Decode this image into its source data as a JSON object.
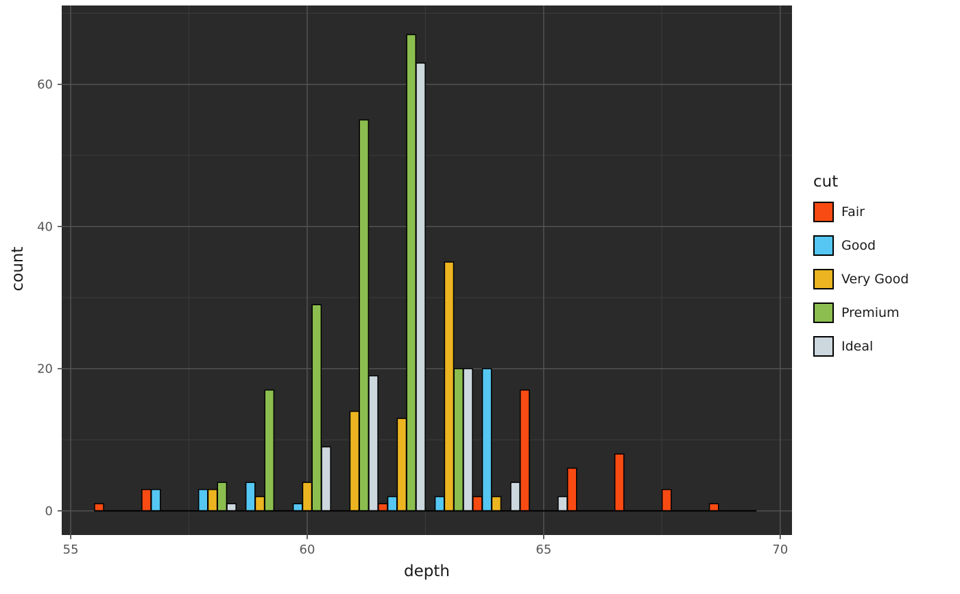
{
  "chart_data": {
    "type": "bar",
    "subtype": "dodged-histogram",
    "xlabel": "depth",
    "ylabel": "count",
    "legend_title": "cut",
    "legend_position": "right",
    "grid": true,
    "panel_background": "#2a2a2a",
    "grid_major_color": "#565656",
    "grid_minor_color": "#3d3d3d",
    "x_ticks": [
      55,
      60,
      65,
      70
    ],
    "x_minor_ticks": [
      57.5,
      62.5,
      67.5
    ],
    "y_ticks": [
      0,
      20,
      40,
      60
    ],
    "y_minor_ticks": [
      10,
      30,
      50,
      70
    ],
    "x_range": [
      54.81,
      70.25
    ],
    "y_range": [
      -3.4,
      71.1
    ],
    "bar_slot_width": 0.2,
    "bar_width": 0.19,
    "series": [
      {
        "name": "Fair",
        "color": "#F84B13"
      },
      {
        "name": "Good",
        "color": "#55C7F2"
      },
      {
        "name": "Very Good",
        "color": "#EBB420"
      },
      {
        "name": "Premium",
        "color": "#8CBE4F"
      },
      {
        "name": "Ideal",
        "color": "#CDD7DE"
      }
    ],
    "bins": [
      {
        "center": 56,
        "counts": [
          1,
          0,
          0,
          0,
          0
        ]
      },
      {
        "center": 57,
        "counts": [
          3,
          3,
          0,
          0,
          0
        ]
      },
      {
        "center": 58,
        "counts": [
          0,
          3,
          3,
          4,
          1
        ]
      },
      {
        "center": 59,
        "counts": [
          0,
          4,
          2,
          17,
          0
        ]
      },
      {
        "center": 60,
        "counts": [
          0,
          1,
          4,
          29,
          9
        ]
      },
      {
        "center": 61,
        "counts": [
          0,
          0,
          14,
          55,
          19
        ]
      },
      {
        "center": 62,
        "counts": [
          1,
          2,
          13,
          67,
          63
        ]
      },
      {
        "center": 63,
        "counts": [
          0,
          2,
          35,
          20,
          20
        ]
      },
      {
        "center": 64,
        "counts": [
          2,
          20,
          2,
          0,
          4
        ]
      },
      {
        "center": 65,
        "counts": [
          17,
          0,
          0,
          0,
          2
        ]
      },
      {
        "center": 66,
        "counts": [
          6,
          0,
          0,
          0,
          0
        ]
      },
      {
        "center": 67,
        "counts": [
          8,
          0,
          0,
          0,
          0
        ]
      },
      {
        "center": 68,
        "counts": [
          3,
          0,
          0,
          0,
          0
        ]
      },
      {
        "center": 69,
        "counts": [
          1,
          0,
          0,
          0,
          0
        ]
      }
    ]
  }
}
